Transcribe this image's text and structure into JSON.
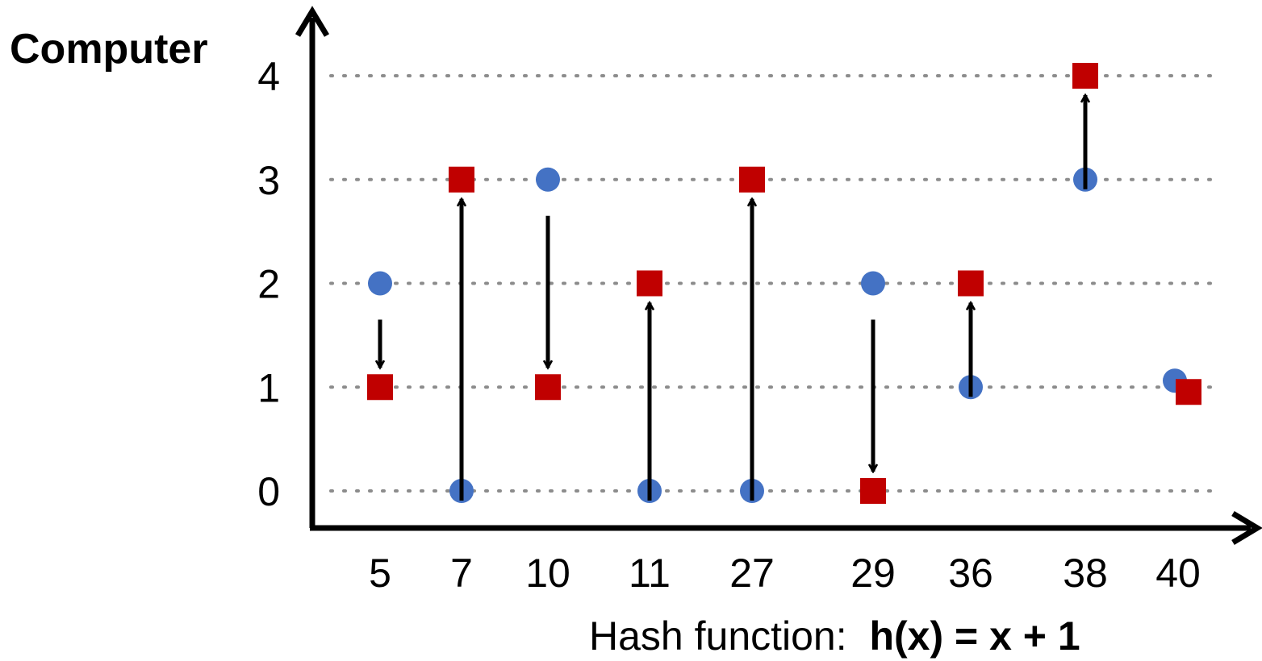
{
  "chart_data": {
    "type": "scatter",
    "ylabel": "Computer",
    "xlabel_prefix": "Hash function:",
    "xlabel_formula": "h(x) = x + 1",
    "categories": [
      "5",
      "7",
      "10",
      "11",
      "27",
      "29",
      "36",
      "38",
      "40"
    ],
    "yticks": [
      "0",
      "1",
      "2",
      "3",
      "4"
    ],
    "ylim": [
      0,
      4
    ],
    "grid": "dotted horizontal",
    "series": [
      {
        "marker": "circle",
        "color": "#4472C4",
        "values": [
          2,
          0,
          3,
          0,
          0,
          2,
          1,
          3,
          1
        ]
      },
      {
        "marker": "square",
        "color": "#C00000",
        "values": [
          1,
          3,
          1,
          2,
          3,
          0,
          2,
          4,
          1
        ]
      }
    ]
  }
}
